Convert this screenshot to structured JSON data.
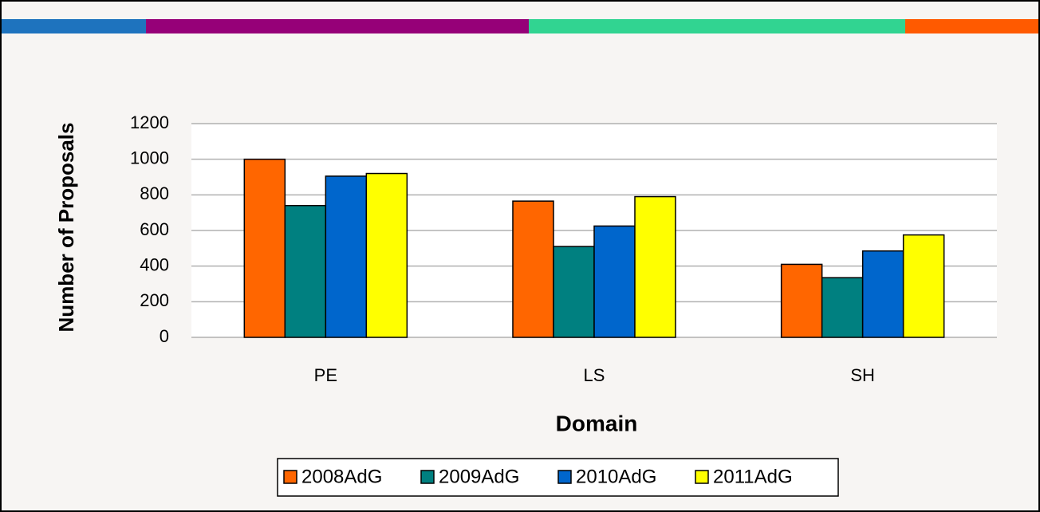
{
  "chart_data": {
    "type": "bar",
    "xlabel": "Domain",
    "ylabel": "Number of Proposals",
    "categories": [
      "PE",
      "LS",
      "SH"
    ],
    "series": [
      {
        "name": "2008AdG",
        "color": "#ff6600",
        "values": [
          1000,
          765,
          410
        ]
      },
      {
        "name": "2009AdG",
        "color": "#008080",
        "values": [
          740,
          510,
          335
        ]
      },
      {
        "name": "2010AdG",
        "color": "#0066cc",
        "values": [
          905,
          625,
          485
        ]
      },
      {
        "name": "2011AdG",
        "color": "#ffff00",
        "values": [
          920,
          790,
          575
        ]
      }
    ],
    "ylim": [
      0,
      1200
    ],
    "yticks": [
      0,
      200,
      400,
      600,
      800,
      1000,
      1200
    ],
    "grid": true,
    "legend": "bottom"
  }
}
